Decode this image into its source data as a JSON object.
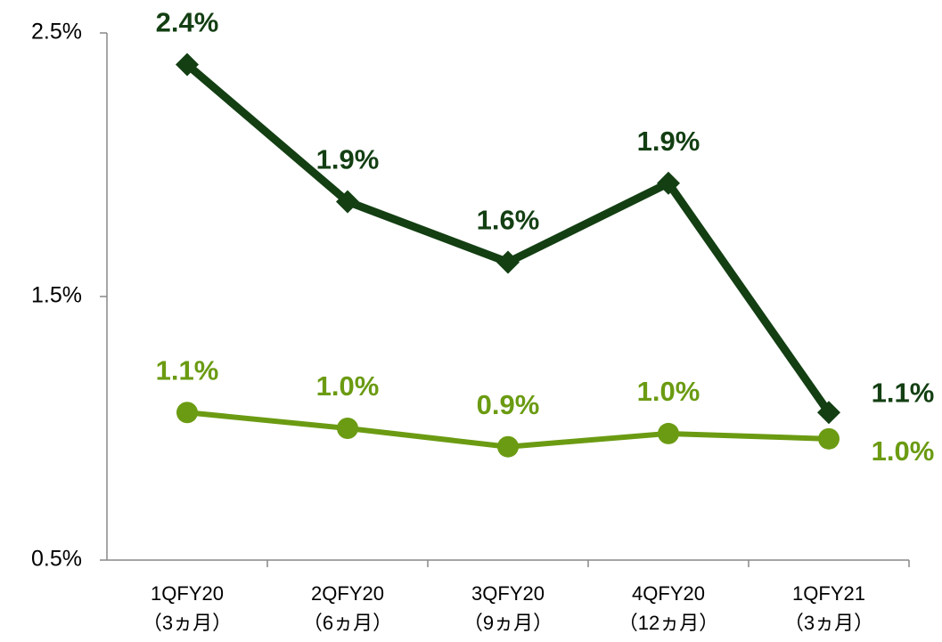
{
  "chart_data": {
    "type": "line",
    "categories": [
      [
        "1QFY20",
        "（3ヵ月）"
      ],
      [
        "2QFY20",
        "（6ヵ月）"
      ],
      [
        "3QFY20",
        "（9ヵ月）"
      ],
      [
        "4QFY20",
        "（12ヵ月）"
      ],
      [
        "1QFY21",
        "（3ヵ月）"
      ]
    ],
    "series": [
      {
        "color": "#133f13",
        "marker": "diamond",
        "values": [
          2.38,
          1.86,
          1.63,
          1.93,
          1.06
        ],
        "value_labels": [
          "2.4%",
          "1.9%",
          "1.6%",
          "1.9%",
          "1.1%"
        ]
      },
      {
        "color": "#6b9b12",
        "marker": "circle",
        "values": [
          1.06,
          1.0,
          0.93,
          0.98,
          0.96
        ],
        "value_labels": [
          "1.1%",
          "1.0%",
          "0.9%",
          "1.0%",
          "1.0%"
        ]
      }
    ],
    "ylim": [
      0.5,
      2.5
    ],
    "yticks": [
      {
        "value": 0.5,
        "label": "0.5%"
      },
      {
        "value": 1.5,
        "label": "1.5%"
      },
      {
        "value": 2.5,
        "label": "2.5%"
      }
    ],
    "grid": false
  }
}
